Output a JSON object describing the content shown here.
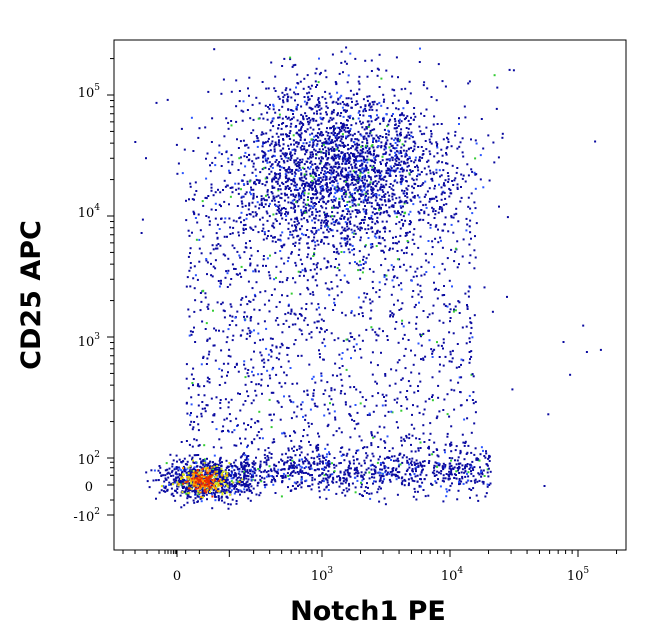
{
  "chart_data": {
    "type": "scatter",
    "title": "",
    "xlabel": "Notch1 PE",
    "ylabel": "CD25 APC",
    "x_scale": "biexponential (logicle)",
    "y_scale": "biexponential (logicle)",
    "xlim": [
      -1000,
      200000
    ],
    "ylim": [
      -300,
      200000
    ],
    "x_ticks": [
      {
        "label": "0",
        "value": 0
      },
      {
        "label": "10",
        "sup": "3",
        "value": 1000
      },
      {
        "label": "10",
        "sup": "4",
        "value": 10000
      },
      {
        "label": "10",
        "sup": "5",
        "value": 100000
      }
    ],
    "y_ticks": [
      {
        "label": "-10",
        "sup": "2",
        "value": -100
      },
      {
        "label": "0",
        "value": 0
      },
      {
        "label": "10",
        "sup": "2",
        "value": 100
      },
      {
        "label": "10",
        "sup": "3",
        "value": 1000
      },
      {
        "label": "10",
        "sup": "4",
        "value": 10000
      },
      {
        "label": "10",
        "sup": "5",
        "value": 100000
      }
    ],
    "density_colors": [
      "#0a0aa0",
      "#2a55ff",
      "#33cc33",
      "#d8e81a",
      "#ff9900",
      "#e82a00"
    ],
    "populations": [
      {
        "name_hidden": true,
        "x_center": 40,
        "y_center": 30,
        "spread": "tight",
        "density": "highest",
        "events": 600
      },
      {
        "name_hidden": true,
        "x_range": [
          500,
          30000
        ],
        "y_center": 50,
        "density": "medium",
        "events": 900
      },
      {
        "name_hidden": true,
        "x_center": 2000,
        "y_center": 25000,
        "x_range": [
          200,
          20000
        ],
        "y_range": [
          3000,
          130000
        ],
        "density": "medium",
        "events": 2600
      },
      {
        "name_hidden": true,
        "x_range": [
          0,
          20000
        ],
        "y_range": [
          100,
          10000
        ],
        "density": "low",
        "events": 1400
      }
    ],
    "grid": false,
    "legend": "none"
  }
}
